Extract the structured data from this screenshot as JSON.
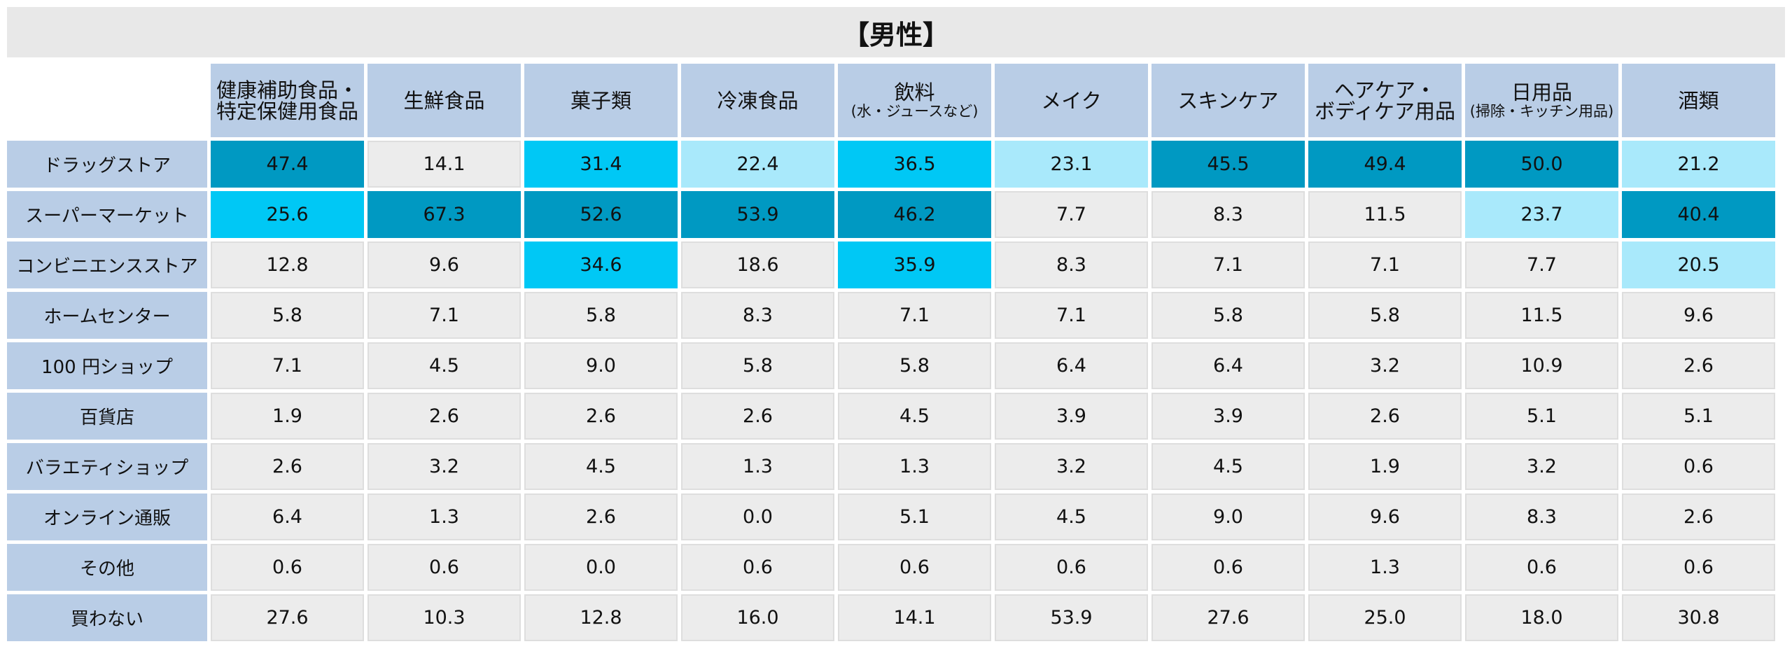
{
  "title": "【男性】",
  "colors": {
    "title_bg": "#e8e8e8",
    "header_bg": "#b9cde6",
    "cell_default": "#ececec",
    "rank1": "#0099c2",
    "rank2": "#00c8f5",
    "rank3": "#a9e9fb"
  },
  "chart_data": {
    "type": "table",
    "title": "【男性】",
    "columns": [
      {
        "label": "健康補助食品・\n特定保健用食品",
        "sub": ""
      },
      {
        "label": "生鮮食品",
        "sub": ""
      },
      {
        "label": "菓子類",
        "sub": ""
      },
      {
        "label": "冷凍食品",
        "sub": ""
      },
      {
        "label": "飲料",
        "sub": "(水・ジュースなど)"
      },
      {
        "label": "メイク",
        "sub": ""
      },
      {
        "label": "スキンケア",
        "sub": ""
      },
      {
        "label": "ヘアケア・\nボディケア用品",
        "sub": ""
      },
      {
        "label": "日用品",
        "sub": "(掃除・キッチン用品)"
      },
      {
        "label": "酒類",
        "sub": ""
      }
    ],
    "rows": [
      {
        "label": "ドラッグストア",
        "values": [
          "47.4",
          "14.1",
          "31.4",
          "22.4",
          "36.5",
          "23.1",
          "45.5",
          "49.4",
          "50.0",
          "21.2"
        ]
      },
      {
        "label": "スーパーマーケット",
        "values": [
          "25.6",
          "67.3",
          "52.6",
          "53.9",
          "46.2",
          "7.7",
          "8.3",
          "11.5",
          "23.7",
          "40.4"
        ]
      },
      {
        "label": "コンビニエンスストア",
        "values": [
          "12.8",
          "9.6",
          "34.6",
          "18.6",
          "35.9",
          "8.3",
          "7.1",
          "7.1",
          "7.7",
          "20.5"
        ]
      },
      {
        "label": "ホームセンター",
        "values": [
          "5.8",
          "7.1",
          "5.8",
          "8.3",
          "7.1",
          "7.1",
          "5.8",
          "5.8",
          "11.5",
          "9.6"
        ]
      },
      {
        "label": "100 円ショップ",
        "values": [
          "7.1",
          "4.5",
          "9.0",
          "5.8",
          "5.8",
          "6.4",
          "6.4",
          "3.2",
          "10.9",
          "2.6"
        ]
      },
      {
        "label": "百貨店",
        "values": [
          "1.9",
          "2.6",
          "2.6",
          "2.6",
          "4.5",
          "3.9",
          "3.9",
          "2.6",
          "5.1",
          "5.1"
        ]
      },
      {
        "label": "バラエティショップ",
        "values": [
          "2.6",
          "3.2",
          "4.5",
          "1.3",
          "1.3",
          "3.2",
          "4.5",
          "1.9",
          "3.2",
          "0.6"
        ]
      },
      {
        "label": "オンライン通販",
        "values": [
          "6.4",
          "1.3",
          "2.6",
          "0.0",
          "5.1",
          "4.5",
          "9.0",
          "9.6",
          "8.3",
          "2.6"
        ]
      },
      {
        "label": "その他",
        "values": [
          "0.6",
          "0.6",
          "0.0",
          "0.6",
          "0.6",
          "0.6",
          "0.6",
          "1.3",
          "0.6",
          "0.6"
        ]
      },
      {
        "label": "買わない",
        "values": [
          "27.6",
          "10.3",
          "12.8",
          "16.0",
          "14.1",
          "53.9",
          "27.6",
          "25.0",
          "18.0",
          "30.8"
        ]
      }
    ],
    "highlight": [
      [
        1,
        0,
        2,
        3,
        2,
        3,
        1,
        1,
        1,
        3
      ],
      [
        2,
        1,
        1,
        1,
        1,
        0,
        0,
        0,
        3,
        1
      ],
      [
        0,
        0,
        2,
        0,
        2,
        0,
        0,
        0,
        0,
        3
      ],
      [
        0,
        0,
        0,
        0,
        0,
        0,
        0,
        0,
        0,
        0
      ],
      [
        0,
        0,
        0,
        0,
        0,
        0,
        0,
        0,
        0,
        0
      ],
      [
        0,
        0,
        0,
        0,
        0,
        0,
        0,
        0,
        0,
        0
      ],
      [
        0,
        0,
        0,
        0,
        0,
        0,
        0,
        0,
        0,
        0
      ],
      [
        0,
        0,
        0,
        0,
        0,
        0,
        0,
        0,
        0,
        0
      ],
      [
        0,
        0,
        0,
        0,
        0,
        0,
        0,
        0,
        0,
        0
      ],
      [
        0,
        0,
        0,
        0,
        0,
        0,
        0,
        0,
        0,
        0
      ]
    ]
  }
}
